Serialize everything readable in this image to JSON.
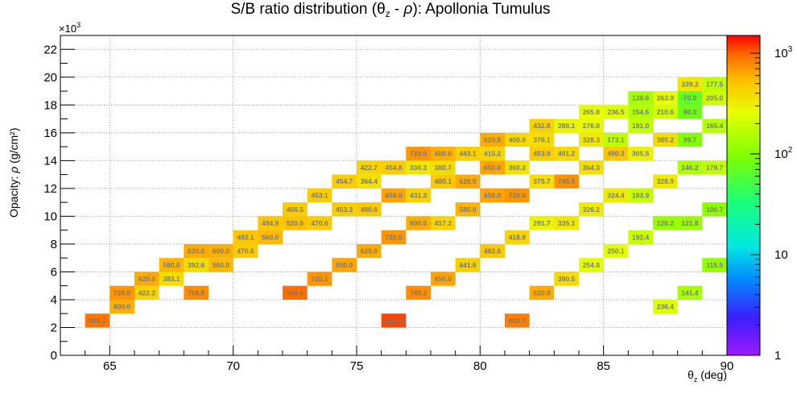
{
  "chart_data": {
    "type": "heatmap",
    "title": "S/B ratio distribution (θz - ρ): Apollonia Tumulus",
    "title_main": "S/B ratio distribution (θ",
    "title_sub": "z",
    "title_mid": " - ",
    "title_rho": "ρ",
    "title_tail": "): Apollonia Tumulus",
    "xlabel": "θz (deg)",
    "xlabel_main": "θ",
    "xlabel_sub": "z",
    "xlabel_tail": " (deg)",
    "ylabel": "Opacity: ρ (g/cm²)",
    "ylabel_main": "Opacity: ",
    "ylabel_rho": "ρ",
    "ylabel_tail": " (g/cm²)",
    "y_multiplier": "×10³",
    "y_multiplier_base": "×10",
    "y_multiplier_exp": "3",
    "xlim": [
      63,
      90
    ],
    "ylim": [
      0,
      23
    ],
    "x_ticks": [
      65,
      70,
      75,
      80,
      85,
      90
    ],
    "y_ticks": [
      0,
      2,
      4,
      6,
      8,
      10,
      12,
      14,
      16,
      18,
      20,
      22
    ],
    "grid": true,
    "bin_width_x": 1,
    "bin_width_y": 1,
    "color_scale": "log",
    "zlim": [
      1,
      1500
    ],
    "colorbar_ticks": [
      {
        "value": 1,
        "base": "1",
        "exp": ""
      },
      {
        "value": 10,
        "base": "10",
        "exp": ""
      },
      {
        "value": 100,
        "base": "10",
        "exp": "2"
      },
      {
        "value": 1000,
        "base": "10",
        "exp": "3"
      }
    ],
    "cells": [
      {
        "x": 64,
        "y": 2,
        "v": 895.1
      },
      {
        "x": 76,
        "y": 2,
        "v": 1128.4
      },
      {
        "x": 81,
        "y": 2,
        "v": 843.7
      },
      {
        "x": 65,
        "y": 3,
        "v": 600.0
      },
      {
        "x": 87,
        "y": 3,
        "v": 236.4
      },
      {
        "x": 65,
        "y": 4,
        "v": 720.0
      },
      {
        "x": 66,
        "y": 4,
        "v": 422.2
      },
      {
        "x": 68,
        "y": 4,
        "v": 758.8
      },
      {
        "x": 72,
        "y": 4,
        "v": 940.4
      },
      {
        "x": 77,
        "y": 4,
        "v": 749.2
      },
      {
        "x": 82,
        "y": 4,
        "v": 620.0
      },
      {
        "x": 88,
        "y": 4,
        "v": 141.4
      },
      {
        "x": 66,
        "y": 5,
        "v": 620.0
      },
      {
        "x": 67,
        "y": 5,
        "v": 383.1
      },
      {
        "x": 73,
        "y": 5,
        "v": 720.1
      },
      {
        "x": 78,
        "y": 5,
        "v": 650.0
      },
      {
        "x": 83,
        "y": 5,
        "v": 390.5
      },
      {
        "x": 67,
        "y": 6,
        "v": 580.0
      },
      {
        "x": 68,
        "y": 6,
        "v": 392.6
      },
      {
        "x": 69,
        "y": 6,
        "v": 560.0
      },
      {
        "x": 74,
        "y": 6,
        "v": 650.0
      },
      {
        "x": 79,
        "y": 6,
        "v": 441.6
      },
      {
        "x": 84,
        "y": 6,
        "v": 254.8
      },
      {
        "x": 89,
        "y": 6,
        "v": 115.5
      },
      {
        "x": 68,
        "y": 7,
        "v": 620.0
      },
      {
        "x": 69,
        "y": 7,
        "v": 600.0
      },
      {
        "x": 70,
        "y": 7,
        "v": 470.6
      },
      {
        "x": 75,
        "y": 7,
        "v": 620.0
      },
      {
        "x": 80,
        "y": 7,
        "v": 482.6
      },
      {
        "x": 85,
        "y": 7,
        "v": 250.1
      },
      {
        "x": 70,
        "y": 8,
        "v": 492.1
      },
      {
        "x": 71,
        "y": 8,
        "v": 560.0
      },
      {
        "x": 76,
        "y": 8,
        "v": 720.0
      },
      {
        "x": 81,
        "y": 8,
        "v": 418.9
      },
      {
        "x": 86,
        "y": 8,
        "v": 192.4
      },
      {
        "x": 71,
        "y": 9,
        "v": 494.9
      },
      {
        "x": 72,
        "y": 9,
        "v": 520.0
      },
      {
        "x": 73,
        "y": 9,
        "v": 470.6
      },
      {
        "x": 77,
        "y": 9,
        "v": 600.0
      },
      {
        "x": 78,
        "y": 9,
        "v": 417.2
      },
      {
        "x": 82,
        "y": 9,
        "v": 291.7
      },
      {
        "x": 83,
        "y": 9,
        "v": 335.1
      },
      {
        "x": 87,
        "y": 9,
        "v": 120.2
      },
      {
        "x": 88,
        "y": 9,
        "v": 121.8
      },
      {
        "x": 72,
        "y": 10,
        "v": 466.5
      },
      {
        "x": 74,
        "y": 10,
        "v": 453.3
      },
      {
        "x": 75,
        "y": 10,
        "v": 480.6
      },
      {
        "x": 79,
        "y": 10,
        "v": 580.0
      },
      {
        "x": 84,
        "y": 10,
        "v": 326.2
      },
      {
        "x": 89,
        "y": 10,
        "v": 106.7
      },
      {
        "x": 73,
        "y": 11,
        "v": 453.1
      },
      {
        "x": 76,
        "y": 11,
        "v": 650.0
      },
      {
        "x": 77,
        "y": 11,
        "v": 431.3
      },
      {
        "x": 80,
        "y": 11,
        "v": 650.0
      },
      {
        "x": 81,
        "y": 11,
        "v": 720.0
      },
      {
        "x": 85,
        "y": 11,
        "v": 324.4
      },
      {
        "x": 86,
        "y": 11,
        "v": 183.9
      },
      {
        "x": 74,
        "y": 12,
        "v": 454.7
      },
      {
        "x": 75,
        "y": 12,
        "v": 364.4
      },
      {
        "x": 78,
        "y": 12,
        "v": 480.1
      },
      {
        "x": 79,
        "y": 12,
        "v": 620.0
      },
      {
        "x": 82,
        "y": 12,
        "v": 375.7
      },
      {
        "x": 83,
        "y": 12,
        "v": 745.9
      },
      {
        "x": 87,
        "y": 12,
        "v": 328.9
      },
      {
        "x": 75,
        "y": 13,
        "v": 422.7
      },
      {
        "x": 76,
        "y": 13,
        "v": 454.8
      },
      {
        "x": 77,
        "y": 13,
        "v": 336.3
      },
      {
        "x": 78,
        "y": 13,
        "v": 380.7
      },
      {
        "x": 80,
        "y": 13,
        "v": 650.0
      },
      {
        "x": 81,
        "y": 13,
        "v": 360.3
      },
      {
        "x": 84,
        "y": 13,
        "v": 364.3
      },
      {
        "x": 88,
        "y": 13,
        "v": 146.2
      },
      {
        "x": 89,
        "y": 13,
        "v": 179.7
      },
      {
        "x": 77,
        "y": 14,
        "v": 720.0
      },
      {
        "x": 78,
        "y": 14,
        "v": 600.0
      },
      {
        "x": 79,
        "y": 14,
        "v": 443.1
      },
      {
        "x": 80,
        "y": 14,
        "v": 415.2
      },
      {
        "x": 82,
        "y": 14,
        "v": 453.0
      },
      {
        "x": 83,
        "y": 14,
        "v": 401.2
      },
      {
        "x": 85,
        "y": 14,
        "v": 490.3
      },
      {
        "x": 86,
        "y": 14,
        "v": 305.5
      },
      {
        "x": 80,
        "y": 15,
        "v": 620.0
      },
      {
        "x": 81,
        "y": 15,
        "v": 400.0
      },
      {
        "x": 82,
        "y": 15,
        "v": 376.1
      },
      {
        "x": 84,
        "y": 15,
        "v": 328.3
      },
      {
        "x": 85,
        "y": 15,
        "v": 173.1
      },
      {
        "x": 87,
        "y": 15,
        "v": 380.2
      },
      {
        "x": 88,
        "y": 15,
        "v": 99.7
      },
      {
        "x": 82,
        "y": 16,
        "v": 432.8
      },
      {
        "x": 83,
        "y": 16,
        "v": 288.1
      },
      {
        "x": 84,
        "y": 16,
        "v": 276.8
      },
      {
        "x": 86,
        "y": 16,
        "v": 181.0
      },
      {
        "x": 89,
        "y": 16,
        "v": 165.4
      },
      {
        "x": 84,
        "y": 17,
        "v": 265.8
      },
      {
        "x": 85,
        "y": 17,
        "v": 236.5
      },
      {
        "x": 86,
        "y": 17,
        "v": 154.6
      },
      {
        "x": 87,
        "y": 17,
        "v": 210.6
      },
      {
        "x": 88,
        "y": 17,
        "v": 80.0
      },
      {
        "x": 86,
        "y": 18,
        "v": 138.6
      },
      {
        "x": 87,
        "y": 18,
        "v": 263.9
      },
      {
        "x": 88,
        "y": 18,
        "v": 70.0
      },
      {
        "x": 89,
        "y": 18,
        "v": 205.0
      },
      {
        "x": 88,
        "y": 19,
        "v": 339.2
      },
      {
        "x": 89,
        "y": 19,
        "v": 177.5
      }
    ]
  }
}
